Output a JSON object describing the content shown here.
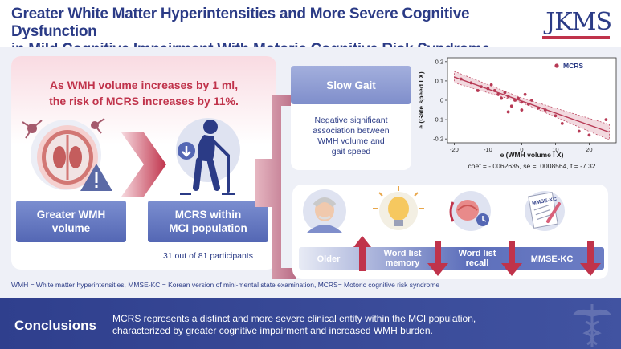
{
  "header": {
    "title_line1": "Greater White Matter Hyperintensities and More Severe Cognitive Dysfunction",
    "title_line2": "in Mild Cognitive Impairment With Motoric Cognitive Risk Syndrome",
    "logo": "JKMS"
  },
  "left": {
    "headline_line1": "As WMH volume increases by 1 ml,",
    "headline_line2": "the risk of MCRS increases by 11%.",
    "box_wmh_line1": "Greater WMH",
    "box_wmh_line2": "volume",
    "box_mcrs_line1": "MCRS within",
    "box_mcrs_line2": "MCI population",
    "participants": "31 out of 81 participants"
  },
  "slow_gait": {
    "title": "Slow Gait",
    "text_line1": "Negative significant",
    "text_line2": "association between",
    "text_line3": "WMH volume and",
    "text_line4": "gait speed"
  },
  "chart_data": {
    "type": "scatter",
    "xlabel": "e (WMH volume I X)",
    "ylabel": "e (Gate speed I X)",
    "legend": "MCRS",
    "legend_position": "top-right",
    "xlim": [
      -22,
      28
    ],
    "ylim": [
      -0.22,
      0.22
    ],
    "xticks": [
      -20,
      -10,
      0,
      10,
      20
    ],
    "yticks": [
      0.2,
      0.1,
      0,
      -0.1,
      -0.2
    ],
    "xtick_labels": [
      "-20",
      "-10",
      "0",
      "10",
      "20"
    ],
    "ytick_labels": [
      "0.2",
      "0.1",
      "0",
      "-0.1",
      "-0.2"
    ],
    "fit": {
      "x": [
        -20,
        26
      ],
      "y": [
        0.12,
        -0.165
      ]
    },
    "ci_upper": [
      [
        -20,
        0.15
      ],
      [
        0,
        0.012
      ],
      [
        26,
        -0.125
      ]
    ],
    "ci_lower": [
      [
        -20,
        0.09
      ],
      [
        0,
        -0.012
      ],
      [
        26,
        -0.205
      ]
    ],
    "points": [
      {
        "x": -18,
        "y": 0.11
      },
      {
        "x": -15,
        "y": 0.09
      },
      {
        "x": -12,
        "y": 0.07
      },
      {
        "x": -10,
        "y": 0.06
      },
      {
        "x": -9,
        "y": 0.08
      },
      {
        "x": -8,
        "y": 0.05
      },
      {
        "x": -7,
        "y": 0.03
      },
      {
        "x": -6,
        "y": 0.01
      },
      {
        "x": -5,
        "y": 0.04
      },
      {
        "x": -4,
        "y": 0.02
      },
      {
        "x": -3,
        "y": -0.03
      },
      {
        "x": -2,
        "y": 0.0
      },
      {
        "x": -1,
        "y": 0.01
      },
      {
        "x": 0,
        "y": -0.01
      },
      {
        "x": 1,
        "y": 0.03
      },
      {
        "x": 2,
        "y": -0.02
      },
      {
        "x": 3,
        "y": 0.0
      },
      {
        "x": -4,
        "y": -0.06
      },
      {
        "x": 0,
        "y": -0.05
      },
      {
        "x": 5,
        "y": -0.04
      },
      {
        "x": 10,
        "y": -0.08
      },
      {
        "x": 12,
        "y": -0.12
      },
      {
        "x": 17,
        "y": -0.16
      },
      {
        "x": 20,
        "y": -0.18
      },
      {
        "x": 25,
        "y": -0.1
      },
      {
        "x": -13,
        "y": 0.05
      },
      {
        "x": 7,
        "y": -0.05
      }
    ],
    "color": "#b73a55",
    "caption": "coef = -.0062635, se = .0008564, t = -7.32"
  },
  "bottom": {
    "older": "Older",
    "word_list_memory_line1": "Word list",
    "word_list_memory_line2": "memory",
    "word_list_recall_line1": "Word list",
    "word_list_recall_line2": "recall",
    "mmse": "MMSE-KC",
    "paper_label": "MMSE-KC"
  },
  "footnote": "WMH = White matter hyperintensities, MMSE-KC = Korean version of mini-mental state examination, MCRS= Motoric cognitive risk syndrome",
  "conclusion": {
    "title": "Conclusions",
    "line1": "MCRS represents a distinct and more severe clinical entity within the MCI population,",
    "line2": "characterized by greater cognitive impairment and increased WMH burden."
  },
  "colors": {
    "navy": "#2b3b86",
    "accent_red": "#c0334b",
    "box_blue": "#5d6fbb"
  }
}
